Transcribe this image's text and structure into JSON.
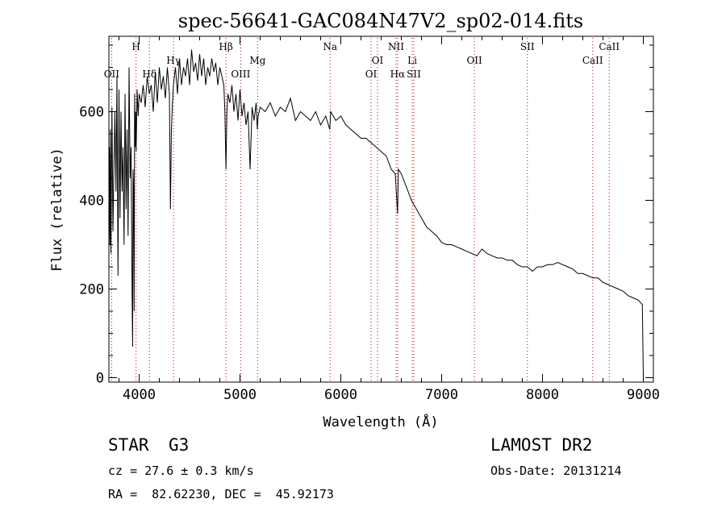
{
  "chart_data": {
    "type": "line",
    "title": "spec-56641-GAC084N47V2_sp02-014.fits",
    "xlabel": "Wavelength (Å)",
    "ylabel": "Flux (relative)",
    "xlim": [
      3700,
      9100
    ],
    "ylim": [
      -10,
      770
    ],
    "xticks": [
      4000,
      5000,
      6000,
      7000,
      8000,
      9000
    ],
    "yticks": [
      0,
      200,
      400,
      600
    ],
    "line_color": "#000000",
    "marker_color": "#cc0000",
    "spectrum": {
      "x": [
        3700,
        3705,
        3710,
        3715,
        3720,
        3730,
        3740,
        3750,
        3760,
        3770,
        3780,
        3790,
        3800,
        3810,
        3820,
        3830,
        3840,
        3850,
        3860,
        3870,
        3880,
        3890,
        3900,
        3910,
        3920,
        3930,
        3935,
        3940,
        3945,
        3950,
        3955,
        3960,
        3965,
        3970,
        3980,
        3990,
        4000,
        4020,
        4040,
        4060,
        4080,
        4100,
        4120,
        4140,
        4160,
        4180,
        4200,
        4220,
        4240,
        4260,
        4280,
        4300,
        4310,
        4320,
        4330,
        4340,
        4360,
        4380,
        4400,
        4420,
        4440,
        4460,
        4480,
        4500,
        4520,
        4540,
        4560,
        4580,
        4600,
        4620,
        4640,
        4660,
        4680,
        4700,
        4720,
        4740,
        4760,
        4780,
        4800,
        4820,
        4840,
        4850,
        4861,
        4870,
        4880,
        4900,
        4920,
        4940,
        4960,
        4980,
        5000,
        5020,
        5040,
        5060,
        5080,
        5100,
        5120,
        5140,
        5160,
        5172,
        5180,
        5200,
        5250,
        5300,
        5350,
        5400,
        5450,
        5500,
        5550,
        5600,
        5650,
        5700,
        5750,
        5800,
        5850,
        5890,
        5900,
        5950,
        6000,
        6050,
        6100,
        6150,
        6200,
        6250,
        6300,
        6350,
        6400,
        6450,
        6500,
        6540,
        6563,
        6570,
        6600,
        6650,
        6700,
        6750,
        6800,
        6850,
        6900,
        6950,
        7000,
        7050,
        7100,
        7150,
        7200,
        7250,
        7300,
        7350,
        7400,
        7450,
        7500,
        7550,
        7600,
        7650,
        7700,
        7750,
        7800,
        7850,
        7900,
        7950,
        8000,
        8050,
        8100,
        8150,
        8200,
        8250,
        8300,
        8350,
        8400,
        8450,
        8500,
        8550,
        8600,
        8650,
        8700,
        8750,
        8800,
        8850,
        8900,
        8950,
        8990,
        9000
      ],
      "y": [
        270,
        520,
        300,
        560,
        280,
        610,
        330,
        480,
        600,
        420,
        680,
        230,
        650,
        360,
        600,
        420,
        520,
        300,
        640,
        380,
        560,
        320,
        700,
        450,
        520,
        180,
        70,
        470,
        430,
        150,
        640,
        520,
        600,
        510,
        650,
        590,
        640,
        620,
        660,
        610,
        680,
        640,
        660,
        600,
        690,
        620,
        700,
        650,
        680,
        630,
        700,
        640,
        380,
        560,
        620,
        660,
        700,
        640,
        720,
        660,
        700,
        680,
        720,
        660,
        740,
        690,
        710,
        670,
        730,
        680,
        720,
        660,
        700,
        680,
        720,
        690,
        710,
        660,
        700,
        680,
        660,
        600,
        470,
        600,
        640,
        620,
        660,
        600,
        640,
        580,
        650,
        590,
        620,
        570,
        600,
        470,
        610,
        580,
        620,
        560,
        590,
        610,
        600,
        620,
        590,
        610,
        600,
        630,
        580,
        600,
        590,
        580,
        600,
        570,
        590,
        560,
        600,
        580,
        590,
        570,
        560,
        550,
        540,
        540,
        530,
        520,
        510,
        500,
        470,
        460,
        370,
        470,
        460,
        430,
        400,
        380,
        360,
        340,
        330,
        320,
        305,
        300,
        300,
        295,
        290,
        285,
        280,
        275,
        290,
        280,
        275,
        270,
        270,
        265,
        265,
        255,
        250,
        250,
        240,
        250,
        250,
        255,
        255,
        260,
        255,
        250,
        245,
        235,
        235,
        230,
        225,
        225,
        215,
        210,
        205,
        200,
        195,
        185,
        180,
        175,
        165,
        0
      ]
    },
    "lines": [
      {
        "name": "OII",
        "wavelength": 3727,
        "row": 3
      },
      {
        "name": "H",
        "wavelength": 3969,
        "row": 1
      },
      {
        "name": "Hδ",
        "wavelength": 4102,
        "row": 3
      },
      {
        "name": "Hγ",
        "wavelength": 4341,
        "row": 2
      },
      {
        "name": "Hβ",
        "wavelength": 4861,
        "row": 1
      },
      {
        "name": "OIII",
        "wavelength": 5007,
        "row": 3
      },
      {
        "name": "Mg",
        "wavelength": 5175,
        "row": 2
      },
      {
        "name": "Na",
        "wavelength": 5894,
        "row": 1
      },
      {
        "name": "OI",
        "wavelength": 6300,
        "row": 3
      },
      {
        "name": "OI",
        "wavelength": 6364,
        "row": 2
      },
      {
        "name": "NII",
        "wavelength": 6548,
        "row": 1
      },
      {
        "name": "Hα",
        "wavelength": 6563,
        "row": 3
      },
      {
        "name": "Li",
        "wavelength": 6708,
        "row": 2
      },
      {
        "name": "SII",
        "wavelength": 6724,
        "row": 3
      },
      {
        "name": "OII",
        "wavelength": 7325,
        "row": 2
      },
      {
        "name": "SII",
        "wavelength": 7850,
        "row": 1
      },
      {
        "name": "CaII",
        "wavelength": 8498,
        "row": 2
      },
      {
        "name": "CaII",
        "wavelength": 8662,
        "row": 1
      }
    ]
  },
  "info": {
    "object_class": "STAR",
    "subclass": "G3",
    "survey": "LAMOST DR2",
    "cz": "cz = 27.6 ± 0.3 km/s",
    "obs_date": "Obs-Date: 20131214",
    "coords": "RA =  82.62230, DEC =  45.92173"
  }
}
